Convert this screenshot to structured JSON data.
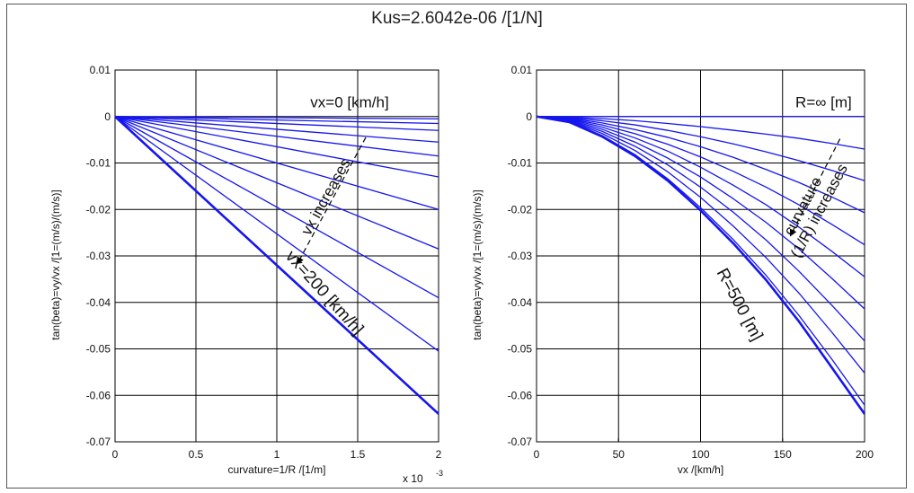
{
  "figure": {
    "title": "Kus=2.6042e-06 /[1/N]"
  },
  "colors": {
    "line": "#1515ee",
    "grid": "#000000",
    "axis": "#000000"
  },
  "chart_data": [
    {
      "type": "line",
      "ylabel": "tan(beta)=vy/vx /[1=(m/s)/(m/s)]",
      "xlabel": "curvature=1/R /[1/m]",
      "x_exponent_label": "x 10",
      "x_exponent_power": "-3",
      "xlim": [
        0,
        0.002
      ],
      "ylim": [
        -0.07,
        0.01
      ],
      "xticks": [
        0,
        0.0005,
        0.001,
        0.0015,
        0.002
      ],
      "xtick_labels": [
        "0",
        "0.5",
        "1",
        "1.5",
        "2"
      ],
      "yticks": [
        0.01,
        0,
        -0.01,
        -0.02,
        -0.03,
        -0.04,
        -0.05,
        -0.06,
        -0.07
      ],
      "ytick_labels": [
        "0.01",
        "0",
        "-0.01",
        "-0.02",
        "-0.03",
        "-0.04",
        "-0.05",
        "-0.06",
        "-0.07"
      ],
      "grid": true,
      "x": [
        0,
        0.002
      ],
      "series": [
        {
          "values": [
            0,
            -0.0005
          ]
        },
        {
          "values": [
            0,
            -0.0015
          ]
        },
        {
          "values": [
            0,
            -0.003
          ]
        },
        {
          "values": [
            0,
            -0.0055
          ]
        },
        {
          "values": [
            0,
            -0.0085
          ]
        },
        {
          "values": [
            0,
            -0.013
          ]
        },
        {
          "values": [
            0,
            -0.02
          ]
        },
        {
          "values": [
            0,
            -0.0285
          ]
        },
        {
          "values": [
            0,
            -0.039
          ]
        },
        {
          "values": [
            0,
            -0.0505
          ]
        },
        {
          "values": [
            0,
            -0.064
          ],
          "bold": true
        }
      ],
      "annotations": [
        {
          "text": "vx=0 [km/h]",
          "x": 0.00145,
          "y": 0.002,
          "rotate": 0,
          "size": 17
        },
        {
          "text": "vx increases",
          "x": 0.00133,
          "y": -0.0178,
          "rotate": -61,
          "size": 17
        },
        {
          "text": "vx=200 [km/h]",
          "x": 0.00127,
          "y": -0.0387,
          "rotate": 48,
          "size": 19
        }
      ],
      "arrow": {
        "from": [
          0.00155,
          -0.0045
        ],
        "to": [
          0.00113,
          -0.0315
        ]
      }
    },
    {
      "type": "line",
      "ylabel": "tan(beta)=vy/vx /[1=(m/s)/(m/s)]",
      "xlabel": "vx /[km/h]",
      "xlim": [
        0,
        200
      ],
      "ylim": [
        -0.07,
        0.01
      ],
      "xticks": [
        0,
        50,
        100,
        150,
        200
      ],
      "xtick_labels": [
        "0",
        "50",
        "100",
        "150",
        "200"
      ],
      "yticks": [
        0.01,
        0,
        -0.01,
        -0.02,
        -0.03,
        -0.04,
        -0.05,
        -0.06,
        -0.07
      ],
      "ytick_labels": [
        "0.01",
        "0",
        "-0.01",
        "-0.02",
        "-0.03",
        "-0.04",
        "-0.05",
        "-0.06",
        "-0.07"
      ],
      "grid": true,
      "x": [
        0,
        20,
        40,
        60,
        80,
        100,
        120,
        140,
        160,
        180,
        200
      ],
      "series": [
        {
          "values": [
            0,
            0,
            0,
            0,
            0,
            0,
            0,
            0,
            0,
            0,
            0
          ]
        },
        {
          "values": [
            0,
            -0.00013,
            -0.00046,
            -0.0009,
            -0.00149,
            -0.00218,
            -0.00296,
            -0.0038,
            -0.0047,
            -0.0058,
            -0.007
          ]
        },
        {
          "values": [
            0,
            -0.00025,
            -0.00091,
            -0.0018,
            -0.00298,
            -0.00435,
            -0.0059,
            -0.0076,
            -0.0095,
            -0.0116,
            -0.0138
          ]
        },
        {
          "values": [
            0,
            -0.00037,
            -0.00137,
            -0.0028,
            -0.00448,
            -0.0065,
            -0.0088,
            -0.0114,
            -0.0142,
            -0.0173,
            -0.0207
          ]
        },
        {
          "values": [
            0,
            -0.00049,
            -0.00182,
            -0.0037,
            -0.00596,
            -0.0087,
            -0.0118,
            -0.0152,
            -0.019,
            -0.0232,
            -0.0276
          ]
        },
        {
          "values": [
            0,
            -0.0006,
            -0.00228,
            -0.0046,
            -0.00745,
            -0.0109,
            -0.0148,
            -0.019,
            -0.0238,
            -0.029,
            -0.0345
          ]
        },
        {
          "values": [
            0,
            -0.00074,
            -0.00274,
            -0.0055,
            -0.00894,
            -0.013,
            -0.0177,
            -0.0228,
            -0.0285,
            -0.0348,
            -0.0414
          ]
        },
        {
          "values": [
            0,
            -0.00086,
            -0.00319,
            -0.0064,
            -0.0104,
            -0.0152,
            -0.0206,
            -0.0266,
            -0.0333,
            -0.0406,
            -0.0483
          ]
        },
        {
          "values": [
            0,
            -0.00098,
            -0.00365,
            -0.0073,
            -0.0119,
            -0.0174,
            -0.0236,
            -0.0304,
            -0.038,
            -0.0464,
            -0.0552
          ]
        },
        {
          "values": [
            0,
            -0.0011,
            -0.0041,
            -0.0082,
            -0.0134,
            -0.0196,
            -0.0265,
            -0.0342,
            -0.0428,
            -0.0522,
            -0.0621
          ]
        },
        {
          "values": [
            0,
            -0.0012,
            -0.0043,
            -0.0085,
            -0.0138,
            -0.0202,
            -0.0273,
            -0.0352,
            -0.0441,
            -0.054,
            -0.064
          ],
          "bold": true
        }
      ],
      "annotations": [
        {
          "text": "R=∞ [m]",
          "x": 175,
          "y": 0.002,
          "rotate": 0,
          "size": 17
        },
        {
          "text": "curvature",
          "x": 165,
          "y": -0.0198,
          "rotate": -62,
          "size": 17
        },
        {
          "text": "(1/R) increases",
          "x": 175,
          "y": -0.0208,
          "rotate": -62,
          "size": 17
        },
        {
          "text": "R=500 [m]",
          "x": 121,
          "y": -0.041,
          "rotate": 62,
          "size": 19
        }
      ],
      "arrow": {
        "from": [
          185,
          -0.0048
        ],
        "to": [
          155,
          -0.0255
        ]
      }
    }
  ]
}
